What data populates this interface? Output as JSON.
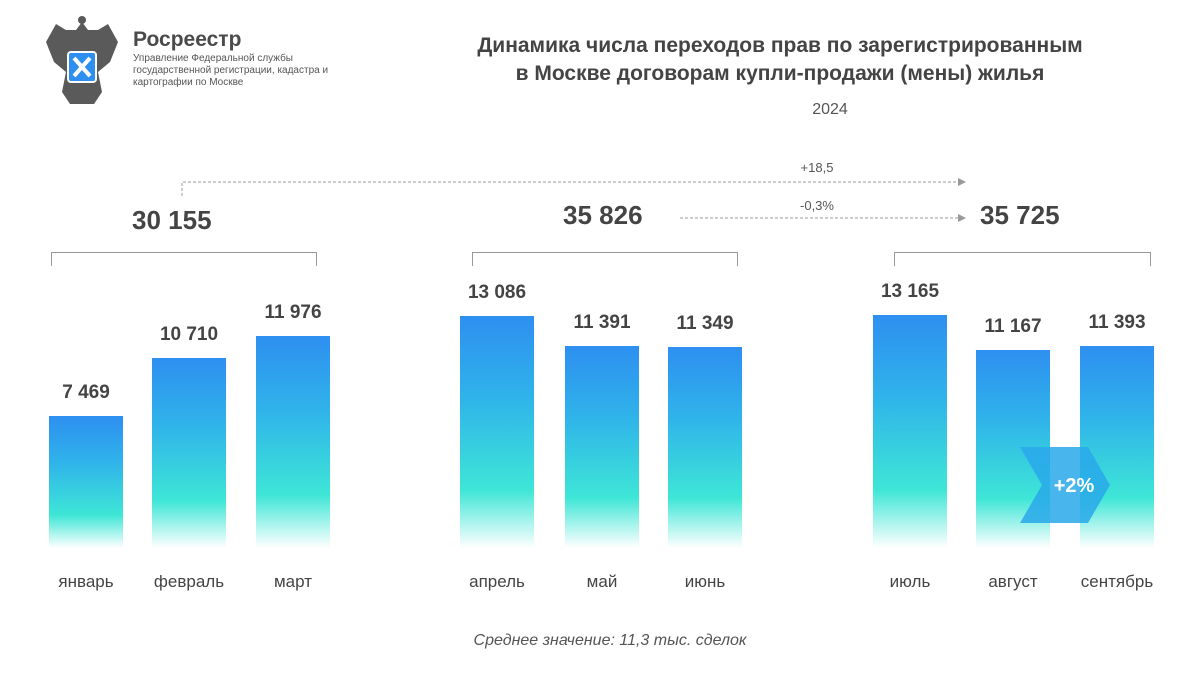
{
  "header": {
    "logo_title": "Росреестр",
    "logo_subtitle": "Управление Федеральной службы государственной регистрации, кадастра и картографии по Москве",
    "title_line1": "Динамика числа переходов прав по зарегистрированным",
    "title_line2": "в Москве договорам купли-продажи (мены) жилья",
    "year": "2024"
  },
  "chart_data": {
    "type": "bar",
    "categories": [
      "январь",
      "февраль",
      "март",
      "апрель",
      "май",
      "июнь",
      "июль",
      "август",
      "сентябрь"
    ],
    "values": [
      7469,
      10710,
      11976,
      13086,
      11391,
      11349,
      13165,
      11167,
      11393
    ],
    "value_labels": [
      "7 469",
      "10 710",
      "11 976",
      "13 086",
      "11 391",
      "11 349",
      "13 165",
      "11 167",
      "11 393"
    ],
    "groups": [
      {
        "total": "30 155"
      },
      {
        "total": "35 826"
      },
      {
        "total": "35 725"
      }
    ],
    "annotations": {
      "q1_to_q3": "+18,5",
      "q2_to_q3": "-0,3%",
      "aug_to_sep": "+2%"
    },
    "colors": {
      "bar_top": "#2e8ff0",
      "bar_mid": "#3ee6d6",
      "arrow": "#29a8ea"
    }
  },
  "footer": "Среднее значение: 11,3 тыс. сделок"
}
